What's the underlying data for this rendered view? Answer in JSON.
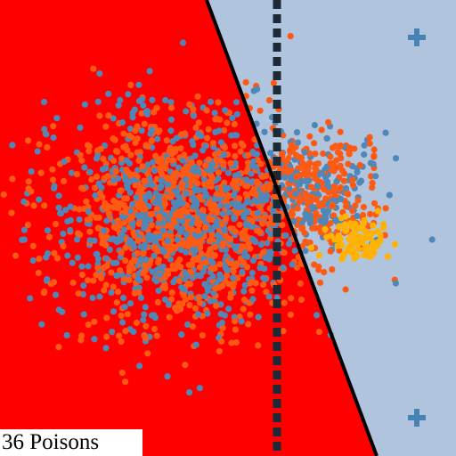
{
  "status": {
    "poisons_label": "36 Poisons"
  },
  "colors": {
    "negative_region": "#ff0000",
    "positive_region": "#b0c4de",
    "boundary_line": "#000000",
    "reference_line": "#1c2a36",
    "clean_point": "#ff5a14",
    "blue_point": "#4f87b8",
    "poison_point": "#ffb300",
    "plus_marker": "#4682b4"
  },
  "icons": {
    "positive_marker": "plus-icon"
  }
}
